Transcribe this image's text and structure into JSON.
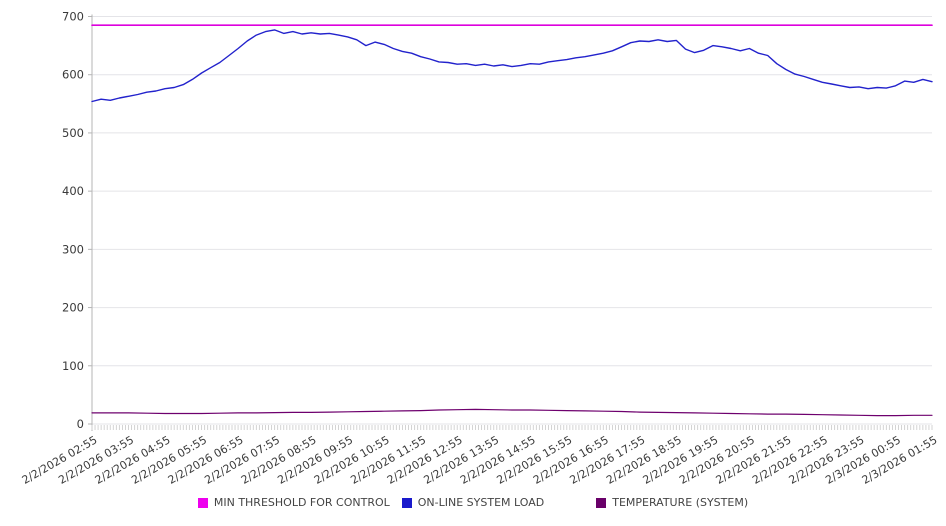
{
  "chart_data": {
    "type": "line",
    "title": "",
    "xlabel": "",
    "ylabel": "",
    "ylim": [
      0,
      700
    ],
    "y_ticks": [
      0,
      100,
      200,
      300,
      400,
      500,
      600,
      700
    ],
    "x_tick_labels": [
      "2/2/2026 02:55",
      "2/2/2026 03:55",
      "2/2/2026 04:55",
      "2/2/2026 05:55",
      "2/2/2026 06:55",
      "2/2/2026 07:55",
      "2/2/2026 08:55",
      "2/2/2026 09:55",
      "2/2/2026 10:55",
      "2/2/2026 11:55",
      "2/2/2026 12:55",
      "2/2/2026 13:55",
      "2/2/2026 14:55",
      "2/2/2026 15:55",
      "2/2/2026 16:55",
      "2/2/2026 17:55",
      "2/2/2026 18:55",
      "2/2/2026 19:55",
      "2/2/2026 20:55",
      "2/2/2026 21:55",
      "2/2/2026 22:55",
      "2/2/2026 23:55",
      "2/3/2026 00:55",
      "2/3/2026 01:55"
    ],
    "x_total_minutes": 1380,
    "x_major_interval_minutes": 60,
    "x_minor_interval_minutes": 5,
    "grid": true,
    "legend_position": "bottom",
    "colors": {
      "grid": "#e4e4e8",
      "axis": "#b5b5b5",
      "minor_tick": "#cfcfcf",
      "tick_text": "#3a3a3a"
    },
    "series": [
      {
        "name": "MIN THRESHOLD FOR CONTROL",
        "color": "#dd00dd",
        "kind": "constant",
        "value": 685,
        "width": 1.6
      },
      {
        "name": "ON-LINE SYSTEM LOAD",
        "color": "#2222cc",
        "kind": "points",
        "step_min": 15,
        "width": 1.4,
        "values": [
          554,
          558,
          556,
          560,
          563,
          566,
          570,
          572,
          576,
          578,
          583,
          592,
          603,
          612,
          621,
          633,
          645,
          658,
          668,
          674,
          677,
          671,
          674,
          670,
          672,
          670,
          671,
          668,
          665,
          660,
          650,
          656,
          652,
          645,
          640,
          637,
          631,
          627,
          622,
          621,
          618,
          619,
          616,
          618,
          615,
          617,
          614,
          616,
          619,
          618,
          622,
          624,
          626,
          629,
          631,
          634,
          637,
          641,
          648,
          655,
          658,
          657,
          660,
          657,
          659,
          644,
          638,
          642,
          650,
          648,
          645,
          641,
          645,
          637,
          633,
          619,
          609,
          601,
          597,
          592,
          587,
          584,
          581,
          578,
          579,
          576,
          578,
          577,
          581,
          589,
          587,
          592,
          588
        ]
      },
      {
        "name": "TEMPERATURE (SYSTEM)",
        "color": "#6e006e",
        "kind": "points",
        "step_min": 30,
        "width": 1.2,
        "values": [
          19,
          19,
          19,
          18.5,
          18,
          18,
          18,
          18.5,
          19,
          19,
          19.5,
          20,
          20,
          20.5,
          21,
          21.5,
          22,
          22.5,
          23,
          24,
          24.5,
          25,
          24.5,
          24,
          24,
          23.5,
          23,
          22.5,
          22,
          21.5,
          20.5,
          20,
          19.5,
          19,
          18.5,
          18,
          17.5,
          17,
          17,
          16.5,
          16,
          15.5,
          15,
          14.5,
          14.5,
          15,
          15
        ]
      }
    ]
  },
  "legend": {
    "items": [
      {
        "label": "MIN THRESHOLD FOR CONTROL",
        "color": "#ee00ee"
      },
      {
        "label": "ON-LINE SYSTEM LOAD",
        "color": "#1a1acc"
      },
      {
        "label": "TEMPERATURE (SYSTEM)",
        "color": "#690069"
      }
    ]
  }
}
